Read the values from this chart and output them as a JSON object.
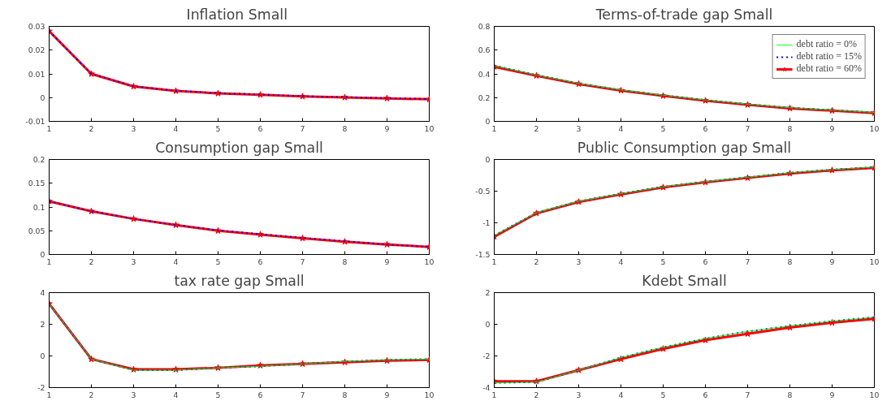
{
  "chart_data": [
    {
      "type": "line",
      "title": "Inflation  Small",
      "x": [
        1,
        2,
        3,
        4,
        5,
        6,
        7,
        8,
        9,
        10
      ],
      "xlim": [
        1,
        10
      ],
      "xticks": [
        1,
        2,
        3,
        4,
        5,
        6,
        7,
        8,
        9,
        10
      ],
      "ylim": [
        -0.01,
        0.03
      ],
      "yticks": [
        -0.01,
        0,
        0.01,
        0.02,
        0.03
      ],
      "series": [
        {
          "color": "#0000ff",
          "line_style": "dotted",
          "marker": "none",
          "values": [
            0.028,
            0.01,
            0.0048,
            0.0029,
            0.0019,
            0.0013,
            0.0006,
            0.0002,
            -0.0002,
            -0.0006
          ]
        },
        {
          "color": "#ff0000",
          "line_style": "solid",
          "marker": "star",
          "values": [
            0.028,
            0.01,
            0.0047,
            0.0028,
            0.0018,
            0.0012,
            0.0005,
            0.0001,
            -0.0003,
            -0.0007
          ]
        }
      ]
    },
    {
      "type": "line",
      "title": "Terms-of-trade gap Small",
      "x": [
        1,
        2,
        3,
        4,
        5,
        6,
        7,
        8,
        9,
        10
      ],
      "xlim": [
        1,
        10
      ],
      "xticks": [
        1,
        2,
        3,
        4,
        5,
        6,
        7,
        8,
        9,
        10
      ],
      "ylim": [
        0,
        0.8
      ],
      "yticks": [
        0,
        0.2,
        0.4,
        0.6,
        0.8
      ],
      "legend": "top right",
      "series": [
        {
          "name": "debt ratio = 0%",
          "color": "#00ff00",
          "line_style": "solid",
          "marker": "none",
          "values": [
            0.47,
            0.39,
            0.32,
            0.265,
            0.22,
            0.18,
            0.145,
            0.115,
            0.095,
            0.075
          ]
        },
        {
          "name": "debt ratio = 15%",
          "color": "#0000ff",
          "line_style": "dotted",
          "marker": "none",
          "values": [
            0.47,
            0.39,
            0.32,
            0.265,
            0.22,
            0.18,
            0.145,
            0.115,
            0.095,
            0.075
          ]
        },
        {
          "name": "debt ratio = 60%",
          "color": "#ff0000",
          "line_style": "solid",
          "marker": "star",
          "values": [
            0.46,
            0.385,
            0.315,
            0.26,
            0.215,
            0.175,
            0.14,
            0.11,
            0.09,
            0.07
          ]
        }
      ]
    },
    {
      "type": "line",
      "title": "Consumption gap Small",
      "x": [
        1,
        2,
        3,
        4,
        5,
        6,
        7,
        8,
        9,
        10
      ],
      "xlim": [
        1,
        10
      ],
      "xticks": [
        1,
        2,
        3,
        4,
        5,
        6,
        7,
        8,
        9,
        10
      ],
      "ylim": [
        0,
        0.2
      ],
      "yticks": [
        0,
        0.05,
        0.1,
        0.15,
        0.2
      ],
      "series": [
        {
          "color": "#0000ff",
          "line_style": "dotted",
          "marker": "none",
          "values": [
            0.112,
            0.091,
            0.075,
            0.062,
            0.051,
            0.043,
            0.035,
            0.028,
            0.021,
            0.016
          ]
        },
        {
          "color": "#ff0000",
          "line_style": "solid",
          "marker": "star",
          "values": [
            0.112,
            0.091,
            0.075,
            0.062,
            0.05,
            0.042,
            0.034,
            0.027,
            0.021,
            0.016
          ]
        }
      ]
    },
    {
      "type": "line",
      "title": "Public Consumption gap Small",
      "x": [
        1,
        2,
        3,
        4,
        5,
        6,
        7,
        8,
        9,
        10
      ],
      "xlim": [
        1,
        10
      ],
      "xticks": [
        1,
        2,
        3,
        4,
        5,
        6,
        7,
        8,
        9,
        10
      ],
      "ylim": [
        -1.5,
        0
      ],
      "yticks": [
        -1.5,
        -1,
        -0.5,
        0
      ],
      "series": [
        {
          "color": "#00ff00",
          "line_style": "solid",
          "marker": "none",
          "values": [
            -1.2,
            -0.84,
            -0.66,
            -0.54,
            -0.43,
            -0.35,
            -0.28,
            -0.21,
            -0.16,
            -0.12
          ]
        },
        {
          "color": "#0000ff",
          "line_style": "dotted",
          "marker": "none",
          "values": [
            -1.2,
            -0.84,
            -0.66,
            -0.54,
            -0.43,
            -0.35,
            -0.28,
            -0.21,
            -0.16,
            -0.12
          ]
        },
        {
          "color": "#ff0000",
          "line_style": "solid",
          "marker": "star",
          "values": [
            -1.22,
            -0.85,
            -0.67,
            -0.55,
            -0.44,
            -0.36,
            -0.29,
            -0.22,
            -0.17,
            -0.13
          ]
        }
      ]
    },
    {
      "type": "line",
      "title": "tax rate gap Small",
      "x": [
        1,
        2,
        3,
        4,
        5,
        6,
        7,
        8,
        9,
        10
      ],
      "xlim": [
        1,
        10
      ],
      "xticks": [
        1,
        2,
        3,
        4,
        5,
        6,
        7,
        8,
        9,
        10
      ],
      "ylim": [
        -2,
        4
      ],
      "yticks": [
        -2,
        0,
        2,
        4
      ],
      "series": [
        {
          "color": "#00ff00",
          "line_style": "solid",
          "marker": "none",
          "values": [
            3.3,
            -0.2,
            -0.9,
            -0.9,
            -0.75,
            -0.65,
            -0.5,
            -0.35,
            -0.25,
            -0.2
          ]
        },
        {
          "color": "#0000ff",
          "line_style": "dotted",
          "marker": "none",
          "values": [
            3.3,
            -0.2,
            -0.9,
            -0.9,
            -0.75,
            -0.65,
            -0.5,
            -0.35,
            -0.25,
            -0.2
          ]
        },
        {
          "color": "#ff0000",
          "line_style": "solid",
          "marker": "star",
          "values": [
            3.3,
            -0.2,
            -0.85,
            -0.85,
            -0.75,
            -0.6,
            -0.5,
            -0.4,
            -0.3,
            -0.25
          ]
        }
      ]
    },
    {
      "type": "line",
      "title": "Kdebt Small",
      "x": [
        1,
        2,
        3,
        4,
        5,
        6,
        7,
        8,
        9,
        10
      ],
      "xlim": [
        1,
        10
      ],
      "xticks": [
        1,
        2,
        3,
        4,
        5,
        6,
        7,
        8,
        9,
        10
      ],
      "ylim": [
        -4,
        2
      ],
      "yticks": [
        -4,
        -2,
        0,
        2
      ],
      "series": [
        {
          "color": "#00ff00",
          "line_style": "solid",
          "marker": "none",
          "values": [
            -3.7,
            -3.65,
            -2.9,
            -2.1,
            -1.45,
            -0.9,
            -0.45,
            -0.1,
            0.2,
            0.45
          ]
        },
        {
          "color": "#0000ff",
          "line_style": "dotted",
          "marker": "none",
          "values": [
            -3.7,
            -3.65,
            -2.9,
            -2.1,
            -1.45,
            -0.9,
            -0.45,
            -0.1,
            0.2,
            0.45
          ]
        },
        {
          "color": "#ff0000",
          "line_style": "solid",
          "marker": "star",
          "values": [
            -3.6,
            -3.6,
            -2.9,
            -2.2,
            -1.55,
            -1.0,
            -0.6,
            -0.2,
            0.1,
            0.35
          ]
        }
      ]
    }
  ]
}
